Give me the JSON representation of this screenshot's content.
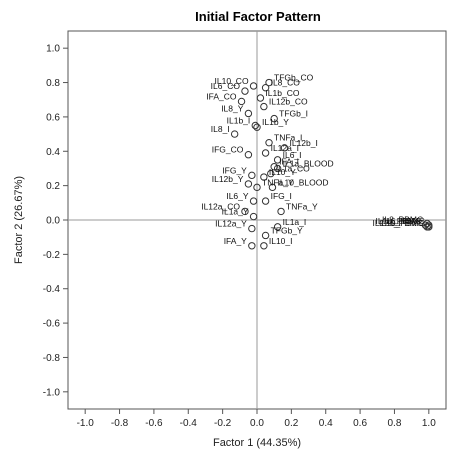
{
  "chart_data": {
    "type": "scatter",
    "title": "Initial Factor Pattern",
    "xlabel": "Factor 1 (44.35%)",
    "ylabel": "Factor 2 (26.67%)",
    "xlim": [
      -1.1,
      1.1
    ],
    "ylim": [
      -1.1,
      1.1
    ],
    "xticks": [
      "-1.0",
      "-0.8",
      "-0.6",
      "-0.4",
      "-0.2",
      "0.0",
      "0.2",
      "0.4",
      "0.6",
      "0.8",
      "1.0"
    ],
    "yticks": [
      "1.0",
      "0.8",
      "0.6",
      "0.4",
      "0.2",
      "0.0",
      "-0.2",
      "-0.4",
      "-0.6",
      "-0.8",
      "-1.0"
    ],
    "reference_lines": {
      "x": 0,
      "y": 0
    },
    "grid": false,
    "points": [
      {
        "label": "TFGb_CO",
        "x": 0.07,
        "y": 0.8
      },
      {
        "label": "IL10_CO",
        "x": -0.02,
        "y": 0.78
      },
      {
        "label": "IL8_CO",
        "x": 0.05,
        "y": 0.77
      },
      {
        "label": "IL6_CO",
        "x": -0.07,
        "y": 0.75
      },
      {
        "label": "IL1b_CO",
        "x": 0.02,
        "y": 0.71
      },
      {
        "label": "IFA_CO",
        "x": -0.09,
        "y": 0.69
      },
      {
        "label": "IL12b_CO",
        "x": 0.04,
        "y": 0.66
      },
      {
        "label": "IL8_Y",
        "x": -0.05,
        "y": 0.62
      },
      {
        "label": "TFGb_I",
        "x": 0.1,
        "y": 0.59
      },
      {
        "label": "IL1b_I",
        "x": -0.01,
        "y": 0.55
      },
      {
        "label": "IL1b_Y",
        "x": 0.0,
        "y": 0.54
      },
      {
        "label": "IL8_I",
        "x": -0.13,
        "y": 0.5
      },
      {
        "label": "TNFa_I",
        "x": 0.07,
        "y": 0.45
      },
      {
        "label": "IL12b_I",
        "x": 0.16,
        "y": 0.42
      },
      {
        "label": "IL12a_I",
        "x": 0.05,
        "y": 0.39
      },
      {
        "label": "IFG_CO",
        "x": -0.05,
        "y": 0.38
      },
      {
        "label": "IL6_I",
        "x": 0.12,
        "y": 0.35
      },
      {
        "label": "IFA_I",
        "x": 0.1,
        "y": 0.31
      },
      {
        "label": "IL1a_BLOOD",
        "x": 0.12,
        "y": 0.3
      },
      {
        "label": "IL1a_CO",
        "x": 0.08,
        "y": 0.27
      },
      {
        "label": "IFG_Y",
        "x": -0.03,
        "y": 0.26
      },
      {
        "label": "IL10_Y",
        "x": 0.04,
        "y": 0.25
      },
      {
        "label": "IL12b_Y",
        "x": -0.05,
        "y": 0.21
      },
      {
        "label": "TNFa_Y",
        "x": 0.0,
        "y": 0.19
      },
      {
        "label": "IL10_BLOOD",
        "x": 0.09,
        "y": 0.19
      },
      {
        "label": "IL6_Y",
        "x": -0.02,
        "y": 0.11
      },
      {
        "label": "IFG_I",
        "x": 0.05,
        "y": 0.11
      },
      {
        "label": "IL12a_CO",
        "x": -0.07,
        "y": 0.05
      },
      {
        "label": "TNFa_Y",
        "x": 0.14,
        "y": 0.05
      },
      {
        "label": "IL1a_Y",
        "x": -0.02,
        "y": 0.02
      },
      {
        "label": "IL1a_I",
        "x": 0.12,
        "y": -0.04
      },
      {
        "label": "IL12a_Y",
        "x": -0.03,
        "y": -0.05
      },
      {
        "label": "TFGb_Y",
        "x": 0.05,
        "y": -0.09
      },
      {
        "label": "IFA_Y",
        "x": -0.03,
        "y": -0.15
      },
      {
        "label": "IL10_I",
        "x": 0.04,
        "y": -0.15
      },
      {
        "label": "IL8_PBMC",
        "x": 0.99,
        "y": -0.02
      },
      {
        "label": "IL6_PBMC",
        "x": 1.0,
        "y": -0.03
      },
      {
        "label": "IL1b_PBMC",
        "x": 0.98,
        "y": -0.03
      },
      {
        "label": "IL10_PBMC",
        "x": 1.0,
        "y": -0.04
      },
      {
        "label": "IL12b_PBMC",
        "x": 0.99,
        "y": -0.04
      }
    ]
  }
}
